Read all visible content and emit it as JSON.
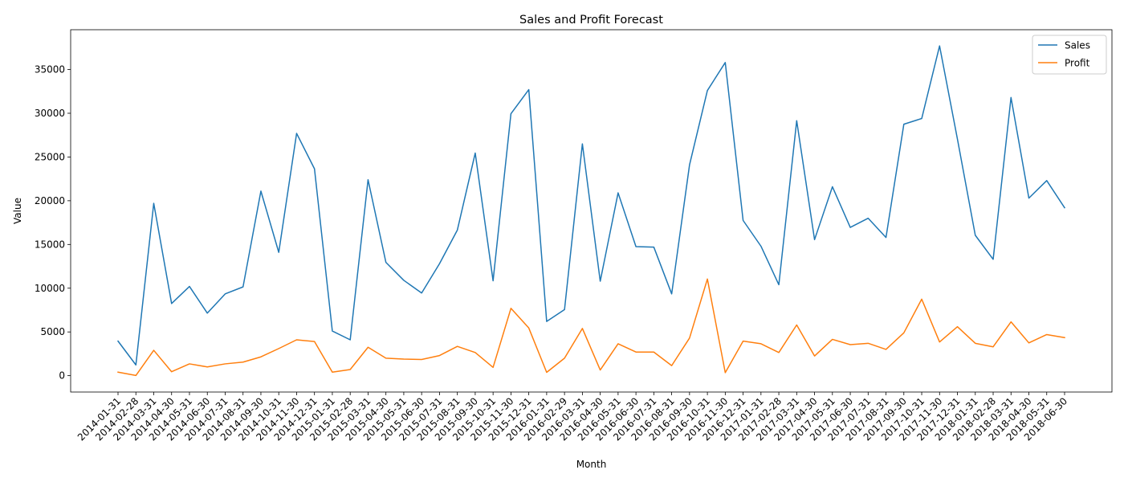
{
  "chart_data": {
    "type": "line",
    "title": "Sales and Profit Forecast",
    "xlabel": "Month",
    "ylabel": "Value",
    "ylim": [
      -1870,
      39550
    ],
    "yticks": [
      0,
      5000,
      10000,
      15000,
      20000,
      25000,
      30000,
      35000
    ],
    "legend_position": "top-right",
    "grid": false,
    "x": [
      "2014-01-31",
      "2014-02-28",
      "2014-03-31",
      "2014-04-30",
      "2014-05-31",
      "2014-06-30",
      "2014-07-31",
      "2014-08-31",
      "2014-09-30",
      "2014-10-31",
      "2014-11-30",
      "2014-12-31",
      "2015-01-31",
      "2015-02-28",
      "2015-03-31",
      "2015-04-30",
      "2015-05-31",
      "2015-06-30",
      "2015-07-31",
      "2015-08-31",
      "2015-09-30",
      "2015-10-31",
      "2015-11-30",
      "2015-12-31",
      "2016-01-31",
      "2016-02-29",
      "2016-03-31",
      "2016-04-30",
      "2016-05-31",
      "2016-06-30",
      "2016-07-31",
      "2016-08-31",
      "2016-09-30",
      "2016-10-31",
      "2016-11-30",
      "2016-12-31",
      "2017-01-31",
      "2017-02-28",
      "2017-03-31",
      "2017-04-30",
      "2017-05-31",
      "2017-06-30",
      "2017-07-31",
      "2017-08-31",
      "2017-09-30",
      "2017-10-31",
      "2017-11-30",
      "2017-12-31",
      "2018-01-31",
      "2018-02-28",
      "2018-03-31",
      "2018-04-30",
      "2018-05-31",
      "2018-06-30"
    ],
    "series": [
      {
        "name": "Sales",
        "color": "#1f77b4",
        "values": [
          3950,
          1230,
          19700,
          8250,
          10200,
          7150,
          9350,
          10150,
          21100,
          14100,
          27700,
          23650,
          5100,
          4100,
          22400,
          12950,
          10900,
          9450,
          12800,
          16650,
          25450,
          10850,
          29950,
          32700,
          6200,
          7550,
          26500,
          10800,
          20900,
          14750,
          14700,
          9350,
          24100,
          32600,
          35800,
          17750,
          14800,
          10400,
          29150,
          15550,
          21600,
          16950,
          18000,
          15800,
          28750,
          29400,
          37700,
          27050,
          16050,
          13300,
          31800,
          20300,
          22300,
          19200
        ]
      },
      {
        "name": "Profit",
        "color": "#ff7f0e",
        "values": [
          400,
          20,
          2900,
          450,
          1350,
          1000,
          1350,
          1550,
          2150,
          3100,
          4100,
          3900,
          400,
          700,
          3250,
          2000,
          1900,
          1850,
          2300,
          3350,
          2650,
          950,
          7700,
          5450,
          380,
          2000,
          5400,
          650,
          3650,
          2700,
          2700,
          1150,
          4300,
          11050,
          350,
          3950,
          3650,
          2650,
          5800,
          2250,
          4150,
          3550,
          3700,
          3000,
          4900,
          8750,
          3850,
          5600,
          3700,
          3300,
          6150,
          3750,
          4700,
          4350
        ]
      }
    ]
  }
}
